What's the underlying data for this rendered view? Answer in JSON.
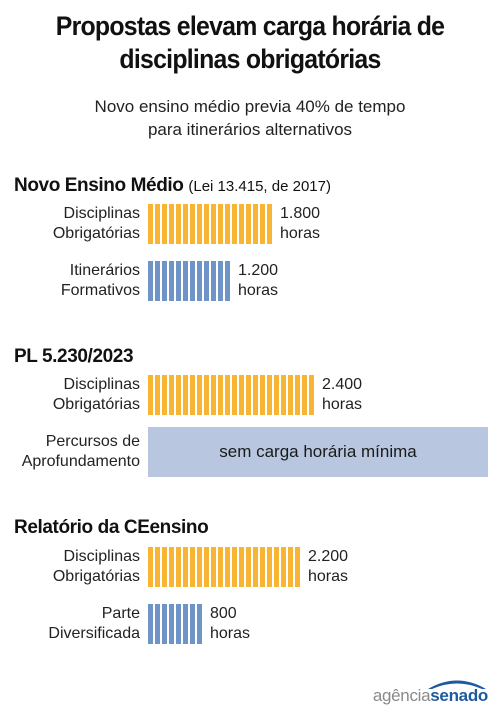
{
  "header": {
    "title_line1": "Propostas elevam carga horária de",
    "title_line2": "disciplinas obrigatórias",
    "subtitle_line1": "Novo ensino médio previa 40% de tempo",
    "subtitle_line2": "para itinerários alternativos"
  },
  "colors": {
    "obrigatorias": "#f8b534",
    "alternativos": "#6f95c8",
    "band": "#b8c6e0"
  },
  "chart_data": {
    "type": "bar",
    "orientation": "horizontal",
    "unit": "horas",
    "groups": [
      {
        "title": "Novo Ensino Médio",
        "note": "(Lei 13.415, de 2017)",
        "rows": [
          {
            "label_line1": "Disciplinas",
            "label_line2": "Obrigatórias",
            "value": 1800,
            "value_text": "1.800",
            "unit_text": "horas",
            "kind": "obrigatorias"
          },
          {
            "label_line1": "Itinerários",
            "label_line2": "Formativos",
            "value": 1200,
            "value_text": "1.200",
            "unit_text": "horas",
            "kind": "alternativos"
          }
        ]
      },
      {
        "title": "PL 5.230/2023",
        "note": "",
        "rows": [
          {
            "label_line1": "Disciplinas",
            "label_line2": "Obrigatórias",
            "value": 2400,
            "value_text": "2.400",
            "unit_text": "horas",
            "kind": "obrigatorias"
          },
          {
            "label_line1": "Percursos de",
            "label_line2": "Aprofundamento",
            "value": null,
            "text": "sem carga horária mínima",
            "kind": "band"
          }
        ]
      },
      {
        "title": "Relatório da CEensino",
        "note": "",
        "rows": [
          {
            "label_line1": "Disciplinas",
            "label_line2": "Obrigatórias",
            "value": 2200,
            "value_text": "2.200",
            "unit_text": "horas",
            "kind": "obrigatorias"
          },
          {
            "label_line1": "Parte",
            "label_line2": "Diversificada",
            "value": 800,
            "value_text": "800",
            "unit_text": "horas",
            "kind": "alternativos"
          }
        ]
      }
    ]
  },
  "footer": {
    "logo_part1": "agência",
    "logo_part2": "senado"
  }
}
